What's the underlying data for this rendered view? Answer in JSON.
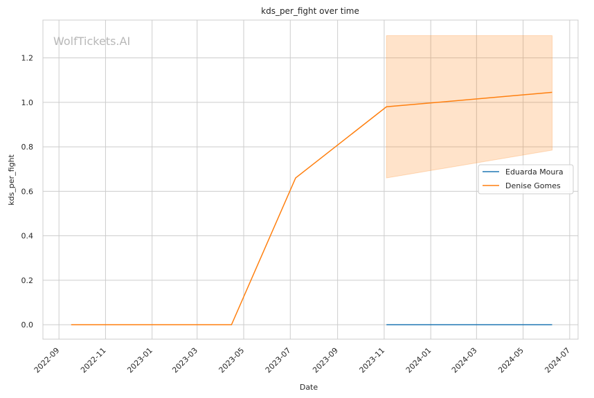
{
  "chart_data": {
    "type": "line",
    "title": "kds_per_fight over time",
    "xlabel": "Date",
    "ylabel": "kds_per_fight",
    "watermark": "WolfTickets.AI",
    "x_axis": {
      "type": "date",
      "range": [
        "2022-08-11",
        "2024-07-12"
      ],
      "ticks": [
        "2022-09",
        "2022-11",
        "2023-01",
        "2023-03",
        "2023-05",
        "2023-07",
        "2023-09",
        "2023-11",
        "2024-01",
        "2024-03",
        "2024-05",
        "2024-07"
      ]
    },
    "y_axis": {
      "range": [
        -0.065,
        1.37
      ],
      "ticks": [
        "0.0",
        "0.2",
        "0.4",
        "0.6",
        "0.8",
        "1.0",
        "1.2"
      ]
    },
    "grid": true,
    "legend_position": "center-right",
    "series": [
      {
        "name": "Eduarda Moura",
        "color": "#1f77b4",
        "points": [
          {
            "x": "2023-11-04",
            "y": 0.0
          },
          {
            "x": "2024-06-08",
            "y": 0.0
          }
        ]
      },
      {
        "name": "Denise Gomes",
        "color": "#ff7f0e",
        "points": [
          {
            "x": "2022-09-17",
            "y": 0.0
          },
          {
            "x": "2023-04-15",
            "y": 0.0
          },
          {
            "x": "2023-07-08",
            "y": 0.66
          },
          {
            "x": "2023-11-04",
            "y": 0.98
          },
          {
            "x": "2024-06-08",
            "y": 1.045
          }
        ],
        "band": [
          {
            "x": "2023-11-04",
            "low": 0.66,
            "high": 1.3
          },
          {
            "x": "2024-06-08",
            "low": 0.785,
            "high": 1.3
          }
        ]
      }
    ]
  }
}
